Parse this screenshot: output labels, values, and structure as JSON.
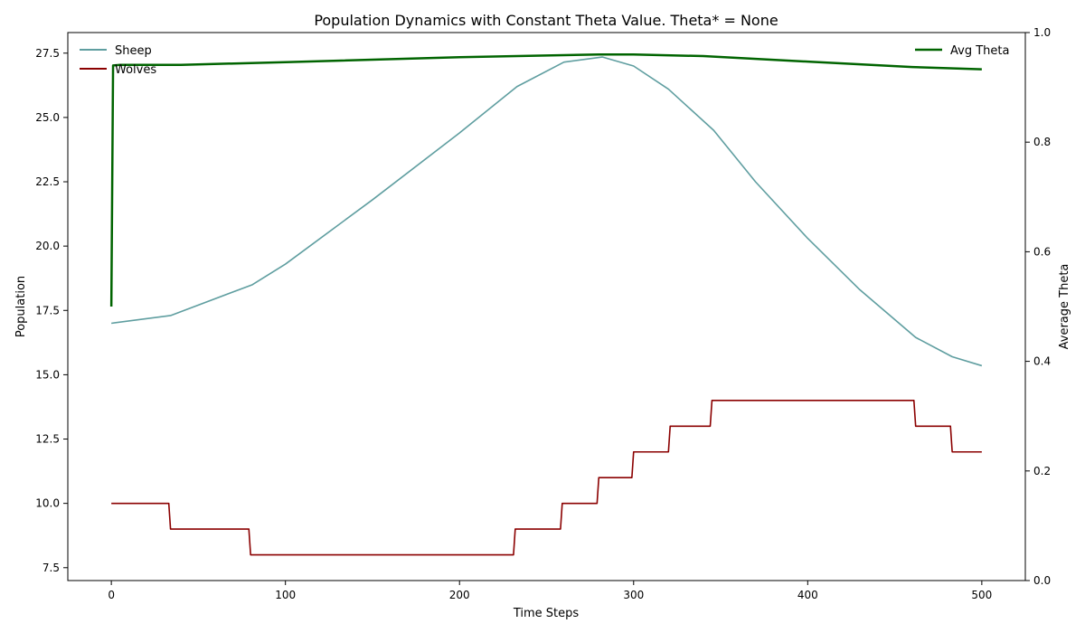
{
  "chart_data": {
    "type": "line",
    "title": "Population Dynamics with Constant Theta Value. Theta* = None",
    "xlabel": "Time Steps",
    "ylabel": "Population",
    "y2label": "Average Theta",
    "xlim": [
      -25,
      525
    ],
    "ylim": [
      7.0,
      28.3
    ],
    "y2lim": [
      0.0,
      1.0
    ],
    "xticks": [
      0,
      100,
      200,
      300,
      400,
      500
    ],
    "yticks": [
      7.5,
      10.0,
      12.5,
      15.0,
      17.5,
      20.0,
      22.5,
      25.0,
      27.5
    ],
    "y2ticks": [
      0.0,
      0.2,
      0.4,
      0.6,
      0.8,
      1.0
    ],
    "legend_left": [
      "Sheep",
      "Wolves"
    ],
    "legend_right": [
      "Avg Theta"
    ],
    "series": [
      {
        "name": "Sheep",
        "axis": "left",
        "color": "#5f9ea0",
        "x": [
          0,
          34,
          81,
          100,
          150,
          200,
          233,
          260,
          282,
          300,
          320,
          346,
          370,
          400,
          430,
          462,
          483,
          500
        ],
        "values": [
          17.0,
          17.3,
          18.5,
          19.3,
          21.8,
          24.4,
          26.2,
          27.15,
          27.35,
          27.0,
          26.1,
          24.5,
          22.5,
          20.3,
          18.3,
          16.45,
          15.7,
          15.35
        ]
      },
      {
        "name": "Wolves",
        "axis": "left",
        "color": "#8b0000",
        "x": [
          0,
          33,
          34,
          79,
          80,
          231,
          232,
          258,
          259,
          279,
          280,
          299,
          300,
          320,
          321,
          344,
          345,
          461,
          462,
          482,
          483,
          500
        ],
        "values": [
          10,
          10,
          9,
          9,
          8,
          8,
          9,
          9,
          10,
          10,
          11,
          11,
          12,
          12,
          13,
          13,
          14,
          14,
          13,
          13,
          12,
          12
        ]
      },
      {
        "name": "Avg Theta",
        "axis": "right",
        "color": "#006400",
        "x": [
          0,
          1,
          5,
          40,
          100,
          200,
          280,
          300,
          340,
          400,
          460,
          500
        ],
        "values": [
          0.5,
          0.94,
          0.941,
          0.941,
          0.946,
          0.955,
          0.96,
          0.96,
          0.957,
          0.947,
          0.937,
          0.933
        ]
      }
    ]
  }
}
